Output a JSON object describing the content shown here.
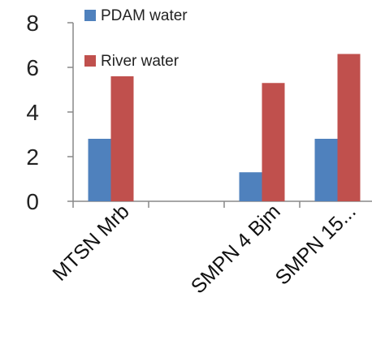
{
  "chart_data": {
    "type": "bar",
    "categories": [
      "MTSN Mrb",
      "",
      "SMPN 4 Bjm",
      "SMPN 15..."
    ],
    "series": [
      {
        "name": "PDAM water",
        "color": "#4F81BD",
        "values": [
          2.8,
          null,
          1.3,
          2.8
        ]
      },
      {
        "name": "River water",
        "color": "#C0504D",
        "values": [
          5.6,
          null,
          5.3,
          6.6
        ]
      }
    ],
    "ylim": [
      0,
      8
    ],
    "yticks": [
      0,
      2,
      4,
      6,
      8
    ],
    "grid": false,
    "legend_position": "top"
  }
}
